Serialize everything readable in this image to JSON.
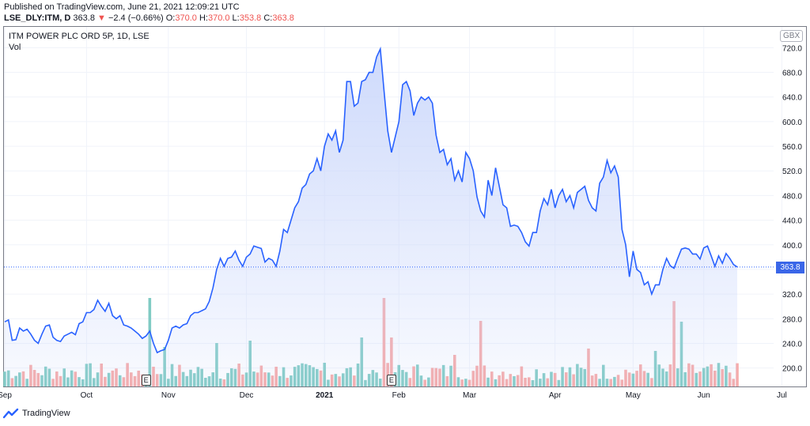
{
  "header": {
    "published": "Published on TradingView.com, June 21, 2021 12:09:21 UTC",
    "symbol": "LSE_DLY:ITM, D",
    "last": "363.8",
    "arrow": "▼",
    "change": "−2.4 (−0.66%)",
    "o_label": "O:",
    "o_val": "370.0",
    "h_label": "H:",
    "h_val": "370.0",
    "l_label": "L:",
    "l_val": "353.8",
    "c_label": "C:",
    "c_val": "363.8"
  },
  "legend": {
    "title": "ITM POWER PLC ORD 5P, 1D, LSE",
    "vol": "Vol"
  },
  "currency": "GBX",
  "last_price_label": "363.8",
  "footer": {
    "brand": "TradingView",
    "logo_icon": "tradingview-logo-icon"
  },
  "earnings_badge": "E",
  "colors": {
    "line": "#2962ff",
    "up_volume": "#80cbc4",
    "down_volume": "#f7a9a7",
    "fill_top": "#c9d6fb",
    "price_label": "#3a66e8"
  },
  "chart_data": {
    "type": "area",
    "ylim": [
      170,
      750
    ],
    "yticks": [
      200,
      240,
      280,
      320,
      360,
      400,
      440,
      480,
      520,
      560,
      600,
      640,
      680,
      720
    ],
    "ytick_labels": [
      "200.0",
      "240.0",
      "280.0",
      "320.0",
      "360.0",
      "400.0",
      "440.0",
      "480.0",
      "520.0",
      "560.0",
      "600.0",
      "640.0",
      "680.0",
      "720.0"
    ],
    "xticks": [
      {
        "label": "Sep",
        "index": 0
      },
      {
        "label": "Oct",
        "index": 22
      },
      {
        "label": "Nov",
        "index": 44
      },
      {
        "label": "Dec",
        "index": 65
      },
      {
        "label": "2021",
        "index": 86
      },
      {
        "label": "Feb",
        "index": 106
      },
      {
        "label": "Mar",
        "index": 125
      },
      {
        "label": "Apr",
        "index": 148
      },
      {
        "label": "May",
        "index": 169
      },
      {
        "label": "Jun",
        "index": 188
      },
      {
        "label": "Jul",
        "index": 209
      }
    ],
    "earnings_indices": [
      38,
      104
    ],
    "close": [
      275,
      278,
      245,
      246,
      265,
      260,
      263,
      255,
      245,
      240,
      255,
      268,
      270,
      250,
      245,
      243,
      252,
      255,
      258,
      254,
      272,
      275,
      290,
      290,
      295,
      310,
      300,
      292,
      305,
      285,
      280,
      285,
      270,
      268,
      265,
      260,
      255,
      248,
      252,
      260,
      240,
      225,
      228,
      230,
      245,
      265,
      268,
      265,
      270,
      272,
      285,
      290,
      290,
      293,
      296,
      308,
      330,
      360,
      378,
      365,
      378,
      380,
      390,
      375,
      365,
      380,
      385,
      398,
      396,
      394,
      372,
      378,
      375,
      365,
      390,
      425,
      420,
      440,
      460,
      470,
      492,
      498,
      515,
      520,
      540,
      520,
      560,
      580,
      570,
      585,
      550,
      570,
      665,
      665,
      625,
      630,
      665,
      668,
      680,
      680,
      705,
      718,
      650,
      585,
      550,
      575,
      600,
      660,
      665,
      650,
      610,
      630,
      640,
      635,
      640,
      630,
      578,
      550,
      555,
      530,
      540,
      505,
      520,
      502,
      550,
      540,
      520,
      478,
      455,
      445,
      505,
      480,
      525,
      495,
      465,
      460,
      430,
      432,
      430,
      420,
      405,
      398,
      420,
      420,
      455,
      475,
      465,
      490,
      460,
      480,
      490,
      470,
      480,
      460,
      485,
      490,
      495,
      472,
      460,
      455,
      500,
      510,
      537,
      517,
      528,
      510,
      425,
      400,
      348,
      390,
      360,
      355,
      335,
      340,
      320,
      335,
      335,
      360,
      378,
      366,
      362,
      378,
      393,
      395,
      393,
      385,
      385,
      377,
      395,
      398,
      382,
      365,
      382,
      370,
      386,
      378,
      368,
      364
    ]
  }
}
